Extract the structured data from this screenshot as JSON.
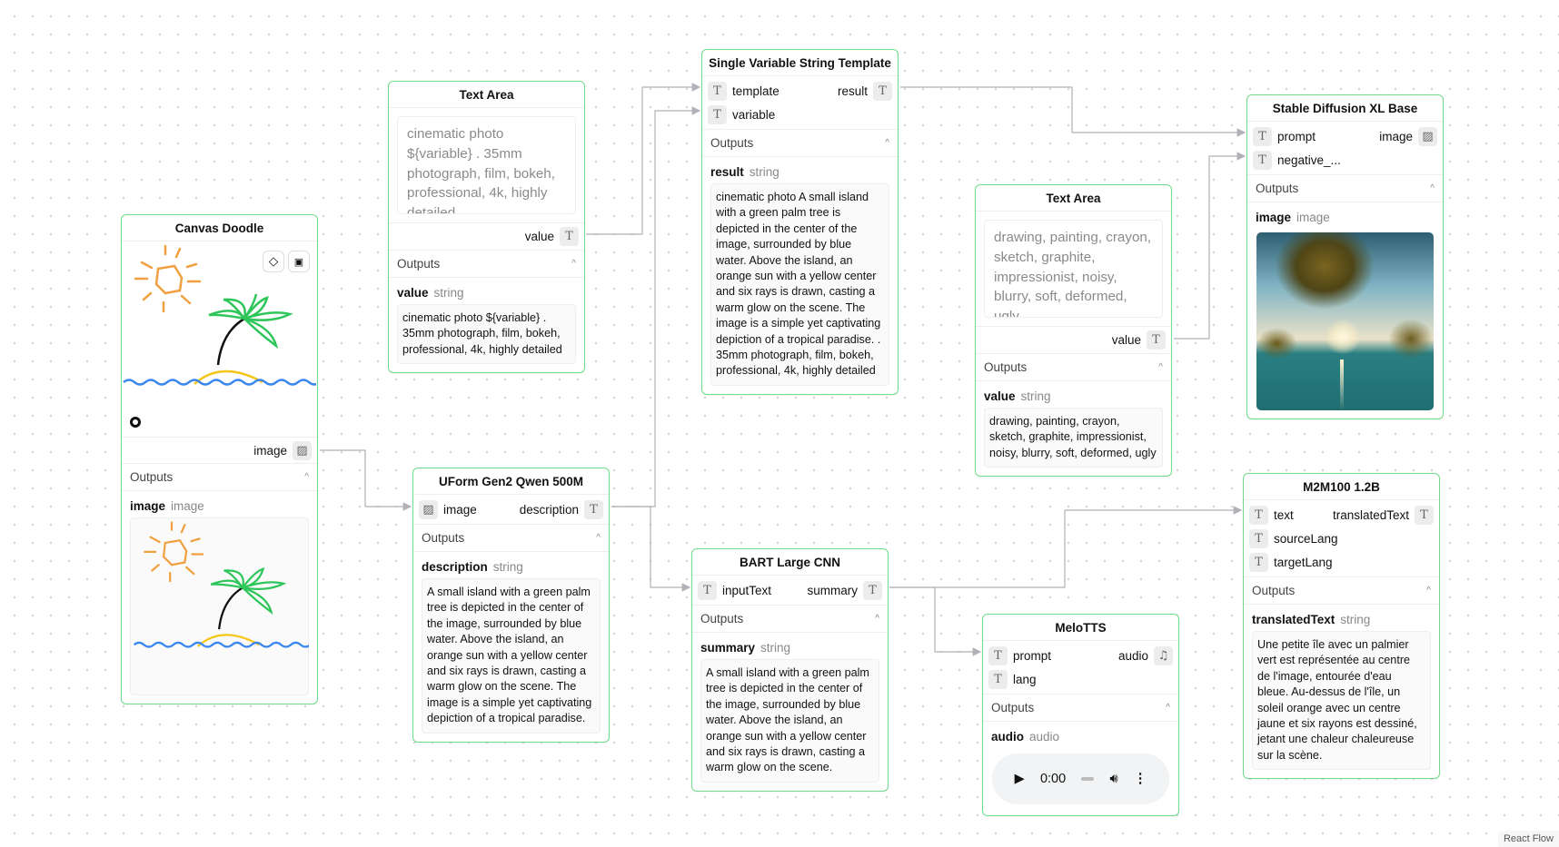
{
  "attribution": "React Flow",
  "common": {
    "outputs": "Outputs",
    "type_string": "string",
    "type_image": "image",
    "type_audio": "audio"
  },
  "canvas_doodle": {
    "title": "Canvas Doodle",
    "output": "image",
    "out_name": "image",
    "icons": [
      "eraser-icon",
      "save-icon"
    ]
  },
  "text_area_1": {
    "title": "Text Area",
    "text": "cinematic photo ${variable} . 35mm photograph, film, bokeh, professional, 4k, highly detailed",
    "output": "value",
    "out_name": "value",
    "out_value": "cinematic photo ${variable} . 35mm photograph, film, bokeh, professional, 4k, highly detailed"
  },
  "string_template": {
    "title": "Single Variable String Template",
    "inputs": [
      "template",
      "variable"
    ],
    "output": "result",
    "out_name": "result",
    "out_value": "cinematic photo A small island with a green palm tree is depicted in the center of the image, surrounded by blue water. Above the island, an orange sun with a yellow center and six rays is drawn, casting a warm glow on the scene. The image is a simple yet captivating depiction of a tropical paradise. . 35mm photograph, film, bokeh, professional, 4k, highly detailed"
  },
  "uform": {
    "title": "UForm Gen2 Qwen 500M",
    "input": "image",
    "output": "description",
    "out_name": "description",
    "out_value": "A small island with a green palm tree is depicted in the center of the image, surrounded by blue water. Above the island, an orange sun with a yellow center and six rays is drawn, casting a warm glow on the scene. The image is a simple yet captivating depiction of a tropical paradise."
  },
  "bart": {
    "title": "BART Large CNN",
    "input": "inputText",
    "output": "summary",
    "out_name": "summary",
    "out_value": "A small island with a green palm tree is depicted in the center of the image, surrounded by blue water. Above the island, an orange sun with a yellow center and six rays is drawn, casting a warm glow on the scene."
  },
  "text_area_2": {
    "title": "Text Area",
    "text": "drawing, painting, crayon, sketch, graphite, impressionist, noisy, blurry, soft, deformed, ugly",
    "output": "value",
    "out_name": "value",
    "out_value": "drawing, painting, crayon, sketch, graphite, impressionist, noisy, blurry, soft, deformed, ugly"
  },
  "sdxl": {
    "title": "Stable Diffusion XL Base",
    "inputs": [
      "prompt",
      "negative_..."
    ],
    "output": "image",
    "out_name": "image"
  },
  "melotts": {
    "title": "MeloTTS",
    "inputs": [
      "prompt",
      "lang"
    ],
    "output": "audio",
    "out_name": "audio",
    "player_time": "0:00"
  },
  "m2m": {
    "title": "M2M100 1.2B",
    "inputs": [
      "text",
      "sourceLang",
      "targetLang"
    ],
    "output": "translatedText",
    "out_name": "translatedText",
    "out_value": "Une petite île avec un palmier vert est représentée au centre de l'image, entourée d'eau bleue. Au-dessus de l'île, un soleil orange avec un centre jaune et six rayons est dessiné, jetant une chaleur chaleureuse sur la scène."
  },
  "colors": {
    "node_border": "#6fdc8c",
    "edge": "#b1b1b7"
  }
}
